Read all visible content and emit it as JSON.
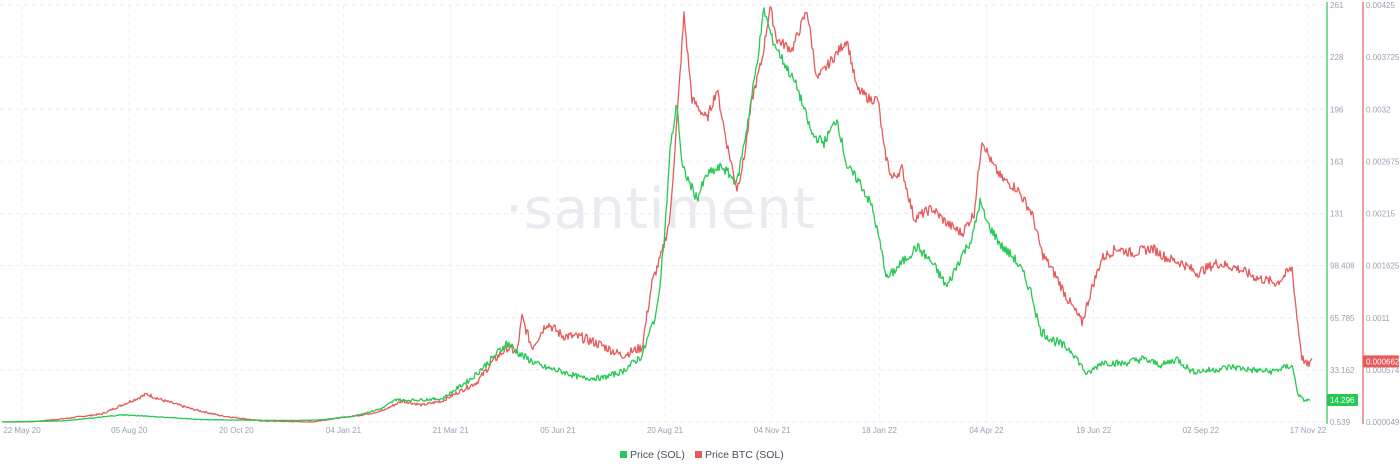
{
  "watermark": "·santiment",
  "chart_data": {
    "type": "line",
    "x_ticks": [
      "22 May 20",
      "05 Aug 20",
      "20 Oct 20",
      "04 Jan 21",
      "21 Mar 21",
      "05 Jun 21",
      "20 Aug 21",
      "04 Nov 21",
      "18 Jan 22",
      "04 Apr 22",
      "19 Jun 22",
      "02 Sep 22",
      "17 Nov 22"
    ],
    "y_left_ticks": [
      "261",
      "228",
      "196",
      "163",
      "131",
      "98.408",
      "65.785",
      "33.162",
      "0.539"
    ],
    "y_right_ticks": [
      "0.00425",
      "0.003725",
      "0.0032",
      "0.002675",
      "0.00215",
      "0.001625",
      "0.0011",
      "0.000574",
      "0.000049"
    ],
    "y_left_range": [
      0.539,
      261
    ],
    "y_right_range": [
      4.9e-05,
      0.00425
    ],
    "grid": true,
    "legend_position": "bottom-center",
    "series": [
      {
        "name": "Price (SOL)",
        "axis": "left",
        "color": "#26c953",
        "last_value_label": "14.296",
        "values": [
          [
            0,
            0.6
          ],
          [
            20,
            0.8
          ],
          [
            60,
            1.2
          ],
          [
            90,
            3
          ],
          [
            120,
            5
          ],
          [
            150,
            4
          ],
          [
            200,
            2
          ],
          [
            260,
            1.6
          ],
          [
            300,
            1.5
          ],
          [
            320,
            2
          ],
          [
            350,
            4
          ],
          [
            380,
            9
          ],
          [
            395,
            15
          ],
          [
            400,
            14
          ],
          [
            440,
            15
          ],
          [
            470,
            28
          ],
          [
            490,
            40
          ],
          [
            505,
            50
          ],
          [
            520,
            42
          ],
          [
            540,
            35
          ],
          [
            560,
            32
          ],
          [
            580,
            28
          ],
          [
            600,
            28
          ],
          [
            620,
            32
          ],
          [
            640,
            42
          ],
          [
            655,
            70
          ],
          [
            663,
            120
          ],
          [
            668,
            170
          ],
          [
            675,
            200
          ],
          [
            680,
            160
          ],
          [
            695,
            140
          ],
          [
            705,
            155
          ],
          [
            720,
            160
          ],
          [
            735,
            150
          ],
          [
            745,
            185
          ],
          [
            755,
            225
          ],
          [
            762,
            258
          ],
          [
            770,
            240
          ],
          [
            782,
            225
          ],
          [
            795,
            210
          ],
          [
            810,
            180
          ],
          [
            822,
            175
          ],
          [
            835,
            190
          ],
          [
            845,
            160
          ],
          [
            858,
            150
          ],
          [
            870,
            135
          ],
          [
            878,
            112
          ],
          [
            885,
            90
          ],
          [
            900,
            100
          ],
          [
            915,
            110
          ],
          [
            930,
            100
          ],
          [
            945,
            85
          ],
          [
            960,
            105
          ],
          [
            970,
            115
          ],
          [
            978,
            138
          ],
          [
            985,
            125
          ],
          [
            1000,
            110
          ],
          [
            1012,
            103
          ],
          [
            1020,
            95
          ],
          [
            1030,
            80
          ],
          [
            1038,
            58
          ],
          [
            1050,
            52
          ],
          [
            1070,
            45
          ],
          [
            1085,
            30
          ],
          [
            1100,
            38
          ],
          [
            1120,
            37
          ],
          [
            1140,
            40
          ],
          [
            1160,
            36
          ],
          [
            1175,
            40
          ],
          [
            1190,
            32
          ],
          [
            1210,
            33
          ],
          [
            1230,
            35
          ],
          [
            1250,
            33
          ],
          [
            1270,
            32
          ],
          [
            1290,
            36
          ],
          [
            1296,
            18
          ],
          [
            1302,
            14
          ],
          [
            1308,
            14.3
          ]
        ]
      },
      {
        "name": "Price BTC (SOL)",
        "axis": "right",
        "color": "#e85a5a",
        "last_value_label": "0.000662",
        "values": [
          [
            0,
            4.9e-05
          ],
          [
            30,
            5.2e-05
          ],
          [
            60,
            8e-05
          ],
          [
            100,
            0.00013
          ],
          [
            120,
            0.00022
          ],
          [
            145,
            0.00033
          ],
          [
            160,
            0.00027
          ],
          [
            190,
            0.00018
          ],
          [
            220,
            0.00011
          ],
          [
            260,
            6e-05
          ],
          [
            310,
            4.9e-05
          ],
          [
            330,
            8e-05
          ],
          [
            360,
            0.00012
          ],
          [
            380,
            0.00016
          ],
          [
            400,
            0.00026
          ],
          [
            420,
            0.00022
          ],
          [
            440,
            0.00026
          ],
          [
            460,
            0.00037
          ],
          [
            475,
            0.00045
          ],
          [
            490,
            0.00065
          ],
          [
            505,
            0.0008
          ],
          [
            515,
            0.00075
          ],
          [
            520,
            0.0011
          ],
          [
            530,
            0.0008
          ],
          [
            545,
            0.00105
          ],
          [
            560,
            0.00092
          ],
          [
            580,
            0.0009
          ],
          [
            600,
            0.00082
          ],
          [
            620,
            0.00072
          ],
          [
            640,
            0.0008
          ],
          [
            650,
            0.00145
          ],
          [
            660,
            0.00175
          ],
          [
            668,
            0.0021
          ],
          [
            675,
            0.0031
          ],
          [
            682,
            0.00415
          ],
          [
            690,
            0.0033
          ],
          [
            705,
            0.0031
          ],
          [
            715,
            0.0034
          ],
          [
            725,
            0.00285
          ],
          [
            735,
            0.0024
          ],
          [
            742,
            0.0027
          ],
          [
            750,
            0.0033
          ],
          [
            760,
            0.0037
          ],
          [
            768,
            0.00423
          ],
          [
            775,
            0.0039
          ],
          [
            790,
            0.0038
          ],
          [
            805,
            0.0042
          ],
          [
            815,
            0.0035
          ],
          [
            830,
            0.0037
          ],
          [
            845,
            0.0039
          ],
          [
            855,
            0.0034
          ],
          [
            868,
            0.0033
          ],
          [
            876,
            0.0033
          ],
          [
            882,
            0.0028
          ],
          [
            890,
            0.0025
          ],
          [
            900,
            0.0026
          ],
          [
            912,
            0.0021
          ],
          [
            930,
            0.0022
          ],
          [
            945,
            0.00205
          ],
          [
            960,
            0.00195
          ],
          [
            972,
            0.00215
          ],
          [
            980,
            0.0029
          ],
          [
            990,
            0.00265
          ],
          [
            1000,
            0.0025
          ],
          [
            1015,
            0.0024
          ],
          [
            1030,
            0.00215
          ],
          [
            1040,
            0.00175
          ],
          [
            1055,
            0.0015
          ],
          [
            1065,
            0.0013
          ],
          [
            1080,
            0.00105
          ],
          [
            1090,
            0.0014
          ],
          [
            1100,
            0.0017
          ],
          [
            1115,
            0.0018
          ],
          [
            1130,
            0.00175
          ],
          [
            1150,
            0.0018
          ],
          [
            1165,
            0.0017
          ],
          [
            1180,
            0.00165
          ],
          [
            1195,
            0.00155
          ],
          [
            1215,
            0.00165
          ],
          [
            1235,
            0.0016
          ],
          [
            1255,
            0.0015
          ],
          [
            1275,
            0.00145
          ],
          [
            1290,
            0.0016
          ],
          [
            1295,
            0.0011
          ],
          [
            1300,
            0.0007
          ],
          [
            1305,
            0.00062
          ],
          [
            1310,
            0.00066
          ]
        ]
      }
    ]
  }
}
